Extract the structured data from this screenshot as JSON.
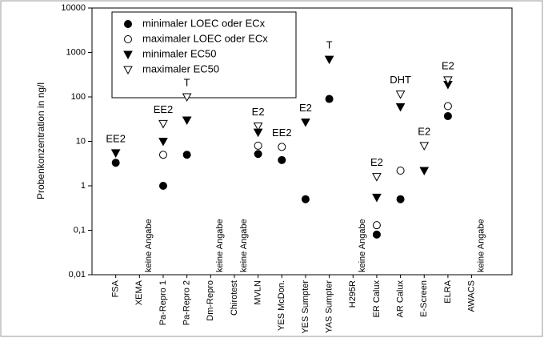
{
  "chart_data": {
    "type": "scatter",
    "y_label": "Probenkonzentration in ng/l",
    "log_y": true,
    "ylim": [
      0.01,
      10000
    ],
    "yticks": [
      {
        "value": 0.01,
        "label": "0,01"
      },
      {
        "value": 0.1,
        "label": "0,1"
      },
      1,
      10,
      100,
      1000,
      10000
    ],
    "categories": [
      "FSA",
      "XEMA",
      "Pa-Repro 1",
      "Pa-Repro 2",
      "Dm-Repro",
      "Chirotest",
      "MVLN",
      "YES McDon.",
      "YES Sumpter",
      "YAS Sumpter",
      "H295R",
      "ER Calux",
      "AR Calux",
      "E-Screen",
      "ELRA",
      "AWACS"
    ],
    "series": [
      {
        "name": "minimaler LOEC oder ECx",
        "marker": "circle",
        "filled": true,
        "color": "#000000",
        "values": [
          3.3,
          null,
          1.0,
          5,
          null,
          null,
          5.2,
          3.8,
          0.5,
          90,
          null,
          0.08,
          0.5,
          null,
          37,
          null
        ]
      },
      {
        "name": "maximaler LOEC oder ECx",
        "marker": "circle",
        "filled": false,
        "color": "#000000",
        "values": [
          null,
          null,
          5,
          null,
          null,
          null,
          8,
          7.5,
          null,
          null,
          null,
          0.13,
          2.2,
          null,
          62,
          null
        ]
      },
      {
        "name": "minimaler EC50",
        "marker": "triangle-down",
        "filled": true,
        "color": "#000000",
        "values": [
          5.5,
          null,
          10,
          30,
          null,
          null,
          16,
          null,
          27,
          700,
          null,
          0.55,
          60,
          2.2,
          190,
          null
        ]
      },
      {
        "name": "maximaler EC50",
        "marker": "triangle-down",
        "filled": false,
        "color": "#000000",
        "values": [
          null,
          null,
          25,
          100,
          null,
          null,
          22,
          null,
          null,
          null,
          null,
          1.6,
          115,
          8,
          240,
          null
        ]
      }
    ],
    "substance_labels": [
      "EE2",
      null,
      "EE2",
      "T",
      null,
      null,
      "E2",
      "EE2",
      "E2",
      "T",
      null,
      "E2",
      "DHT",
      "E2",
      "E2",
      null
    ],
    "no_data_labels": [
      null,
      "keine Angabe",
      null,
      null,
      "keine Angabe",
      "keine Angabe",
      null,
      null,
      null,
      null,
      "keine Angabe",
      null,
      null,
      null,
      null,
      "keine Angabe"
    ]
  }
}
